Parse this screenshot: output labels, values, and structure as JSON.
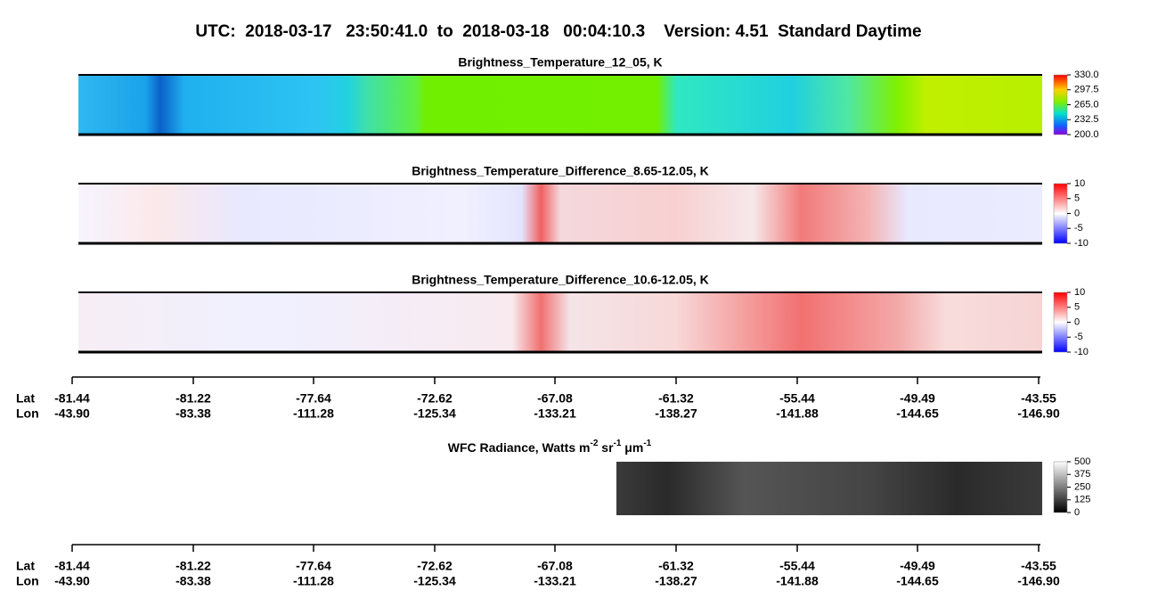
{
  "title": "UTC:  2018-03-17   23:50:41.0  to  2018-03-18   00:04:10.3    Version: 4.51  Standard Daytime",
  "panels": [
    {
      "title": "Brightness_Temperature_12_05, K",
      "colorbar": [
        "330.0",
        "297.5",
        "265.0",
        "232.5",
        "200.0"
      ]
    },
    {
      "title": "Brightness_Temperature_Difference_8.65-12.05, K",
      "colorbar": [
        "10",
        "5",
        "0",
        "-5",
        "-10"
      ]
    },
    {
      "title": "Brightness_Temperature_Difference_10.6-12.05, K",
      "colorbar": [
        "10",
        "5",
        "0",
        "-5",
        "-10"
      ]
    }
  ],
  "axis": [
    {
      "label": "Lat",
      "values": [
        "-81.44",
        "-81.22",
        "-77.64",
        "-72.62",
        "-67.08",
        "-61.32",
        "-55.44",
        "-49.49",
        "-43.55"
      ]
    },
    {
      "label": "Lon",
      "values": [
        "-43.90",
        "-83.38",
        "-111.28",
        "-125.34",
        "-133.21",
        "-138.27",
        "-141.88",
        "-144.65",
        "-146.90"
      ]
    }
  ],
  "radiance": {
    "title_parts": [
      "WFC Radiance, Watts m",
      "-2",
      " sr",
      "-1",
      " μm",
      "-1"
    ],
    "colorbar": [
      "500",
      "375",
      "250",
      "125",
      "0"
    ]
  }
}
